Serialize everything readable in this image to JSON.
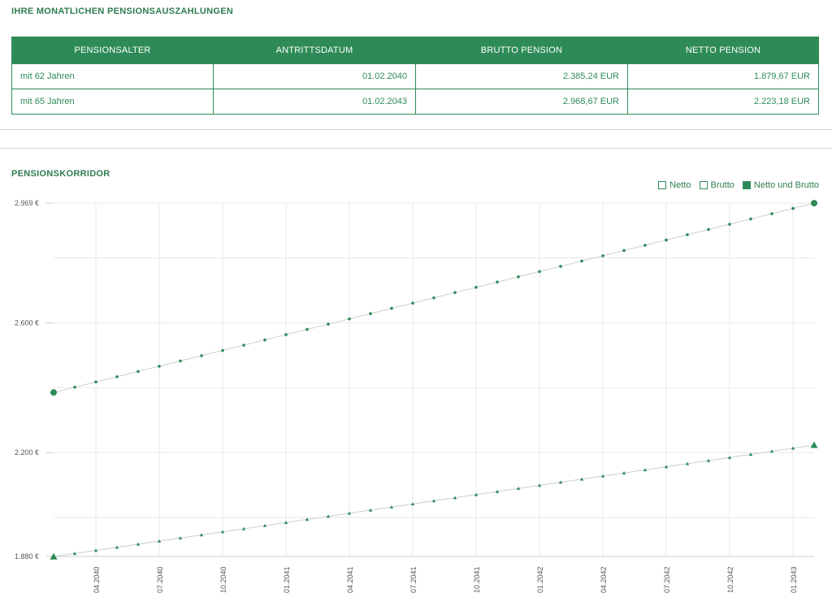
{
  "payouts": {
    "title": "IHRE MONATLICHEN PENSIONSAUSZAHLUNGEN",
    "headers": [
      "PENSIONSALTER",
      "ANTRITTSDATUM",
      "BRUTTO PENSION",
      "NETTO PENSION"
    ],
    "rows": [
      {
        "age": "mit 62 Jahren",
        "start": "01.02.2040",
        "gross": "2.385,24 EUR",
        "net": "1.879,67 EUR"
      },
      {
        "age": "mit 65 Jahren",
        "start": "01.02.2043",
        "gross": "2.968,67 EUR",
        "net": "2.223,18 EUR"
      }
    ]
  },
  "corridor": {
    "title": "PENSIONSKORRIDOR",
    "legend": [
      {
        "label": "Netto",
        "filled": false
      },
      {
        "label": "Brutto",
        "filled": false
      },
      {
        "label": "Netto und Brutto",
        "filled": true
      }
    ]
  },
  "colors": {
    "accent": "#2e8b57",
    "grid": "#e8e8e8",
    "line": "#c8d2cc"
  },
  "chart_data": {
    "type": "line",
    "title": "PENSIONSKORRIDOR",
    "x_start": "01.02.2040",
    "x_end": "01.02.2043",
    "x_ticks": [
      "04.2040",
      "07.2040",
      "10.2040",
      "01.2041",
      "04.2041",
      "07.2041",
      "10.2041",
      "01.2042",
      "04.2042",
      "07.2042",
      "10.2042",
      "01.2043"
    ],
    "y_ticks": [
      {
        "value": 2969,
        "label": "2.969 €"
      },
      {
        "value": 2600,
        "label": "2.600 €"
      },
      {
        "value": 2200,
        "label": "2.200 €"
      },
      {
        "value": 1880,
        "label": "1.880 €"
      }
    ],
    "ylim": [
      1880,
      2969
    ],
    "grid": true,
    "legend_position": "top-right",
    "series": [
      {
        "name": "Brutto",
        "marker": "circle",
        "start_value": 2385.24,
        "end_value": 2968.67,
        "points": 37
      },
      {
        "name": "Netto",
        "marker": "triangle",
        "start_value": 1879.67,
        "end_value": 2223.18,
        "points": 37
      }
    ]
  }
}
